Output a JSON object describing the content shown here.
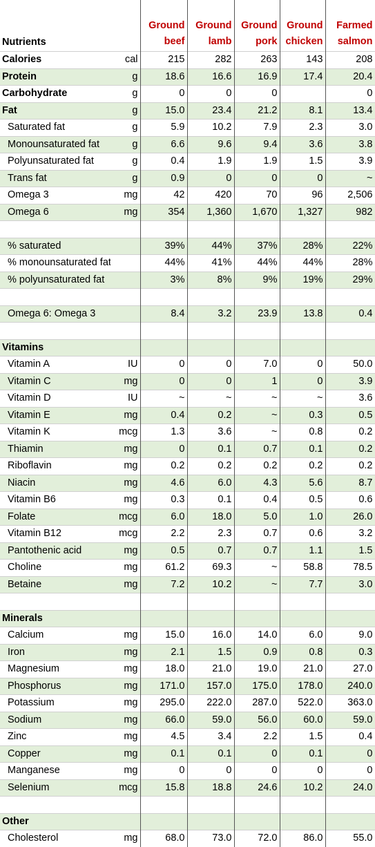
{
  "header": {
    "nutrients_label": "Nutrients",
    "foods": [
      {
        "line1": "Ground",
        "line2": "beef"
      },
      {
        "line1": "Ground",
        "line2": "lamb"
      },
      {
        "line1": "Ground",
        "line2": "pork"
      },
      {
        "line1": "Ground",
        "line2": "chicken"
      },
      {
        "line1": "Farmed",
        "line2": "salmon"
      }
    ]
  },
  "colors": {
    "header_text": "#c00000",
    "shade": "#e2efda",
    "grid": "#555555"
  },
  "rows": [
    {
      "name": "Calories",
      "unit": "cal",
      "vals": [
        "215",
        "282",
        "263",
        "143",
        "208"
      ],
      "bold": true,
      "shade": false
    },
    {
      "name": "Protein",
      "unit": "g",
      "vals": [
        "18.6",
        "16.6",
        "16.9",
        "17.4",
        "20.4"
      ],
      "bold": true,
      "shade": true
    },
    {
      "name": "Carbohydrate",
      "unit": "g",
      "vals": [
        "0",
        "0",
        "0",
        "",
        "0"
      ],
      "bold": true,
      "shade": false
    },
    {
      "name": "Fat",
      "unit": "g",
      "vals": [
        "15.0",
        "23.4",
        "21.2",
        "8.1",
        "13.4"
      ],
      "bold": true,
      "shade": true
    },
    {
      "name": "Saturated fat",
      "unit": "g",
      "vals": [
        "5.9",
        "10.2",
        "7.9",
        "2.3",
        "3.0"
      ],
      "indent": true,
      "shade": false
    },
    {
      "name": "Monounsaturated fat",
      "unit": "g",
      "vals": [
        "6.6",
        "9.6",
        "9.4",
        "3.6",
        "3.8"
      ],
      "indent": true,
      "shade": true
    },
    {
      "name": "Polyunsaturated fat",
      "unit": "g",
      "vals": [
        "0.4",
        "1.9",
        "1.9",
        "1.5",
        "3.9"
      ],
      "indent": true,
      "shade": false
    },
    {
      "name": "Trans fat",
      "unit": "g",
      "vals": [
        "0.9",
        "0",
        "0",
        "0",
        "~"
      ],
      "indent": true,
      "shade": true
    },
    {
      "name": "Omega 3",
      "unit": "mg",
      "vals": [
        "42",
        "420",
        "70",
        "96",
        "2,506"
      ],
      "indent": true,
      "shade": false
    },
    {
      "name": "Omega 6",
      "unit": "mg",
      "vals": [
        "354",
        "1,360",
        "1,670",
        "1,327",
        "982"
      ],
      "indent": true,
      "shade": true
    },
    {
      "name": "",
      "unit": "",
      "vals": [
        "",
        "",
        "",
        "",
        ""
      ],
      "shade": false
    },
    {
      "name": "% saturated",
      "unit": "",
      "vals": [
        "39%",
        "44%",
        "37%",
        "28%",
        "22%"
      ],
      "indent": true,
      "shade": true
    },
    {
      "name": "% monounsaturated fat",
      "unit": "",
      "vals": [
        "44%",
        "41%",
        "44%",
        "44%",
        "28%"
      ],
      "indent": true,
      "shade": false
    },
    {
      "name": "% polyunsaturated fat",
      "unit": "",
      "vals": [
        "3%",
        "8%",
        "9%",
        "19%",
        "29%"
      ],
      "indent": true,
      "shade": true
    },
    {
      "name": "",
      "unit": "",
      "vals": [
        "",
        "",
        "",
        "",
        ""
      ],
      "shade": false
    },
    {
      "name": "Omega 6: Omega 3",
      "unit": "",
      "vals": [
        "8.4",
        "3.2",
        "23.9",
        "13.8",
        "0.4"
      ],
      "indent": true,
      "shade": true
    },
    {
      "name": "",
      "unit": "",
      "vals": [
        "",
        "",
        "",
        "",
        ""
      ],
      "shade": false
    },
    {
      "name": "Vitamins",
      "unit": "",
      "vals": [
        "",
        "",
        "",
        "",
        ""
      ],
      "bold": true,
      "shade": true
    },
    {
      "name": "Vitamin A",
      "unit": "IU",
      "vals": [
        "0",
        "0",
        "7.0",
        "0",
        "50.0"
      ],
      "indent": true,
      "shade": false
    },
    {
      "name": "Vitamin C",
      "unit": "mg",
      "vals": [
        "0",
        "0",
        "1",
        "0",
        "3.9"
      ],
      "indent": true,
      "shade": true
    },
    {
      "name": "Vitamin D",
      "unit": "IU",
      "vals": [
        "~",
        "~",
        "~",
        "~",
        "3.6"
      ],
      "indent": true,
      "shade": false
    },
    {
      "name": "Vitamin E",
      "unit": "mg",
      "vals": [
        "0.4",
        "0.2",
        "~",
        "0.3",
        "0.5"
      ],
      "indent": true,
      "shade": true
    },
    {
      "name": "Vitamin K",
      "unit": "mcg",
      "vals": [
        "1.3",
        "3.6",
        "~",
        "0.8",
        "0.2"
      ],
      "indent": true,
      "shade": false
    },
    {
      "name": "Thiamin",
      "unit": "mg",
      "vals": [
        "0",
        "0.1",
        "0.7",
        "0.1",
        "0.2"
      ],
      "indent": true,
      "shade": true
    },
    {
      "name": "Riboflavin",
      "unit": "mg",
      "vals": [
        "0.2",
        "0.2",
        "0.2",
        "0.2",
        "0.2"
      ],
      "indent": true,
      "shade": false
    },
    {
      "name": "Niacin",
      "unit": "mg",
      "vals": [
        "4.6",
        "6.0",
        "4.3",
        "5.6",
        "8.7"
      ],
      "indent": true,
      "shade": true
    },
    {
      "name": "Vitamin B6",
      "unit": "mg",
      "vals": [
        "0.3",
        "0.1",
        "0.4",
        "0.5",
        "0.6"
      ],
      "indent": true,
      "shade": false
    },
    {
      "name": "Folate",
      "unit": "mcg",
      "vals": [
        "6.0",
        "18.0",
        "5.0",
        "1.0",
        "26.0"
      ],
      "indent": true,
      "shade": true
    },
    {
      "name": "Vitamin B12",
      "unit": "mcg",
      "vals": [
        "2.2",
        "2.3",
        "0.7",
        "0.6",
        "3.2"
      ],
      "indent": true,
      "shade": false
    },
    {
      "name": "Pantothenic acid",
      "unit": "mg",
      "vals": [
        "0.5",
        "0.7",
        "0.7",
        "1.1",
        "1.5"
      ],
      "indent": true,
      "shade": true
    },
    {
      "name": "Choline",
      "unit": "mg",
      "vals": [
        "61.2",
        "69.3",
        "~",
        "58.8",
        "78.5"
      ],
      "indent": true,
      "shade": false
    },
    {
      "name": "Betaine",
      "unit": "mg",
      "vals": [
        "7.2",
        "10.2",
        "~",
        "7.7",
        "3.0"
      ],
      "indent": true,
      "shade": true
    },
    {
      "name": "",
      "unit": "",
      "vals": [
        "",
        "",
        "",
        "",
        ""
      ],
      "shade": false
    },
    {
      "name": "Minerals",
      "unit": "",
      "vals": [
        "",
        "",
        "",
        "",
        ""
      ],
      "bold": true,
      "shade": true
    },
    {
      "name": "Calcium",
      "unit": "mg",
      "vals": [
        "15.0",
        "16.0",
        "14.0",
        "6.0",
        "9.0"
      ],
      "indent": true,
      "shade": false
    },
    {
      "name": "Iron",
      "unit": "mg",
      "vals": [
        "2.1",
        "1.5",
        "0.9",
        "0.8",
        "0.3"
      ],
      "indent": true,
      "shade": true
    },
    {
      "name": "Magnesium",
      "unit": "mg",
      "vals": [
        "18.0",
        "21.0",
        "19.0",
        "21.0",
        "27.0"
      ],
      "indent": true,
      "shade": false
    },
    {
      "name": "Phosphorus",
      "unit": "mg",
      "vals": [
        "171.0",
        "157.0",
        "175.0",
        "178.0",
        "240.0"
      ],
      "indent": true,
      "shade": true
    },
    {
      "name": "Potassium",
      "unit": "mg",
      "vals": [
        "295.0",
        "222.0",
        "287.0",
        "522.0",
        "363.0"
      ],
      "indent": true,
      "shade": false
    },
    {
      "name": "Sodium",
      "unit": "mg",
      "vals": [
        "66.0",
        "59.0",
        "56.0",
        "60.0",
        "59.0"
      ],
      "indent": true,
      "shade": true
    },
    {
      "name": "Zinc",
      "unit": "mg",
      "vals": [
        "4.5",
        "3.4",
        "2.2",
        "1.5",
        "0.4"
      ],
      "indent": true,
      "shade": false
    },
    {
      "name": "Copper",
      "unit": "mg",
      "vals": [
        "0.1",
        "0.1",
        "0",
        "0.1",
        "0"
      ],
      "indent": true,
      "shade": true
    },
    {
      "name": "Manganese",
      "unit": "mg",
      "vals": [
        "0",
        "0",
        "0",
        "0",
        "0"
      ],
      "indent": true,
      "shade": false
    },
    {
      "name": "Selenium",
      "unit": "mcg",
      "vals": [
        "15.8",
        "18.8",
        "24.6",
        "10.2",
        "24.0"
      ],
      "indent": true,
      "shade": true
    },
    {
      "name": "",
      "unit": "",
      "vals": [
        "",
        "",
        "",
        "",
        ""
      ],
      "shade": false
    },
    {
      "name": "Other",
      "unit": "",
      "vals": [
        "",
        "",
        "",
        "",
        ""
      ],
      "bold": true,
      "shade": true
    },
    {
      "name": "Cholesterol",
      "unit": "mg",
      "vals": [
        "68.0",
        "73.0",
        "72.0",
        "86.0",
        "55.0"
      ],
      "indent": true,
      "shade": false
    }
  ]
}
